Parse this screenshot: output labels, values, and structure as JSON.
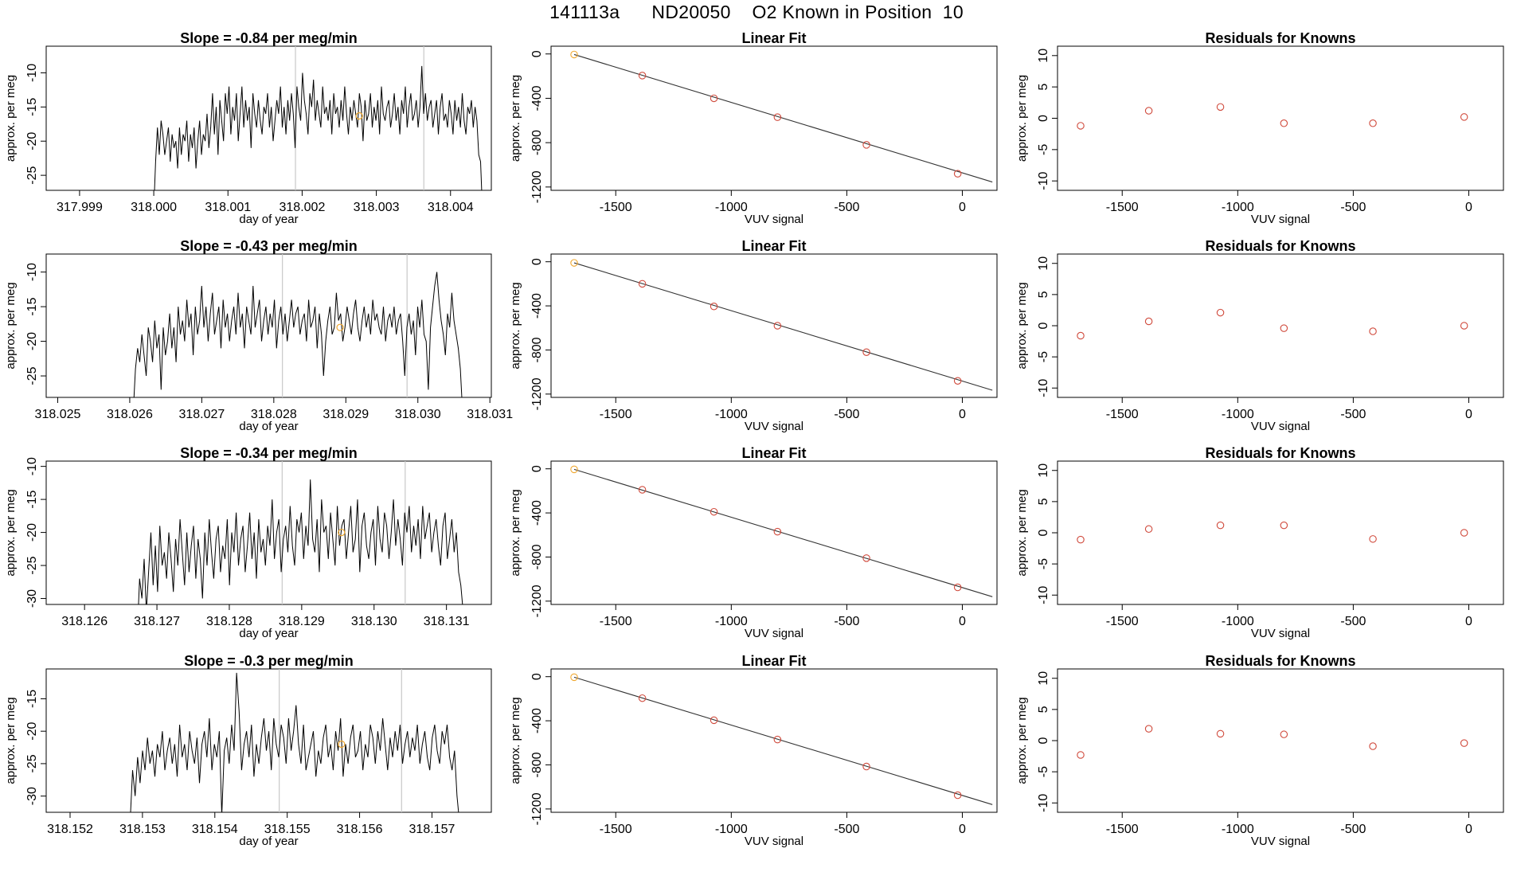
{
  "main_title": "141113a      ND20050    O2 Known in Position  10",
  "colors": {
    "trace": "#000000",
    "known": "#d04a3c",
    "highlight": "#f0a830",
    "vline": "#c8c8c8",
    "fitline": "#333333"
  },
  "chart_data": [
    {
      "type": "line",
      "row": 1,
      "title": "Slope =  -0.84  per meg/min",
      "xlabel": "day of year",
      "ylabel": "approx. per meg",
      "xlim": [
        317.99855,
        318.00455
      ],
      "ylim": [
        -27.2,
        -6.1
      ],
      "xticks": [
        "317.999",
        "318.000",
        "318.001",
        "318.002",
        "318.003",
        "318.004"
      ],
      "yticks": [
        "-10",
        "-15",
        "-20",
        "-25"
      ],
      "x_start": 318.0,
      "x_end": 318.00443,
      "vlines": [
        318.00191,
        318.00364
      ],
      "highlight_point": [
        318.00277,
        -16.3
      ],
      "y": [
        -30,
        -23,
        -18,
        -22,
        -17,
        -19,
        -22,
        -20,
        -18,
        -23,
        -19,
        -21,
        -20,
        -24,
        -18,
        -22,
        -19,
        -20,
        -17,
        -23,
        -19,
        -21,
        -18,
        -24,
        -20,
        -17,
        -22,
        -19,
        -20,
        -16,
        -21,
        -18,
        -13,
        -19,
        -15,
        -22,
        -14,
        -17,
        -20,
        -13,
        -16,
        -12,
        -19,
        -15,
        -17,
        -13,
        -20,
        -16,
        -12,
        -18,
        -14,
        -17,
        -15,
        -21,
        -13,
        -16,
        -18,
        -14,
        -17,
        -19,
        -15,
        -16,
        -13,
        -18,
        -15,
        -20,
        -17,
        -14,
        -16,
        -12,
        -18,
        -15,
        -19,
        -14,
        -17,
        -13,
        -16,
        -21,
        -12,
        -15,
        -17,
        -10,
        -14,
        -16,
        -19,
        -13,
        -15,
        -11,
        -17,
        -14,
        -16,
        -18,
        -12,
        -16,
        -15,
        -17,
        -14,
        -19,
        -13,
        -16,
        -15,
        -18,
        -14,
        -17,
        -12,
        -16,
        -19,
        -15,
        -17,
        -14,
        -16,
        -18,
        -13,
        -15,
        -20,
        -14,
        -17,
        -16,
        -13,
        -18,
        -15,
        -17,
        -14,
        -19,
        -12,
        -16,
        -17,
        -15,
        -14,
        -18,
        -16,
        -13,
        -17,
        -15,
        -19,
        -14,
        -16,
        -12,
        -18,
        -15,
        -13,
        -17,
        -16,
        -14,
        -18,
        -15,
        -9,
        -16,
        -13,
        -17,
        -15,
        -14,
        -18,
        -16,
        -14,
        -19,
        -15,
        -13,
        -17,
        -16,
        -18,
        -14,
        -16,
        -19,
        -14,
        -17,
        -15,
        -18,
        -13,
        -17,
        -19,
        -15,
        -16,
        -14,
        -18,
        -15,
        -17,
        -22,
        -23,
        -30
      ]
    },
    {
      "type": "scatter",
      "row": 1,
      "title": "Linear Fit",
      "xlabel": "VUV signal",
      "ylabel": "approx. per meg",
      "xlim": [
        -1780,
        150
      ],
      "ylim": [
        -1230,
        70
      ],
      "xticks": [
        -1500,
        -1000,
        -500,
        0
      ],
      "yticks": [
        0,
        -400,
        -800,
        -1200
      ],
      "x": [
        -1680,
        -1385,
        -1075,
        -800,
        -415,
        -20
      ],
      "y": [
        -5,
        -195,
        -400,
        -570,
        -820,
        -1080
      ],
      "highlight_index": 0,
      "fit": [
        [
          -1680,
          -5
        ],
        [
          130,
          -1155
        ]
      ]
    },
    {
      "type": "scatter",
      "row": 1,
      "title": "Residuals for Knowns",
      "xlabel": "VUV signal",
      "ylabel": "approx. per meg",
      "xlim": [
        -1780,
        150
      ],
      "ylim": [
        -11.5,
        11.5
      ],
      "xticks": [
        -1500,
        -1000,
        -500,
        0
      ],
      "yticks": [
        10,
        5,
        0,
        -5,
        -10
      ],
      "x": [
        -1680,
        -1385,
        -1075,
        -800,
        -415,
        -20
      ],
      "y": [
        -1.2,
        1.2,
        1.8,
        -0.8,
        -0.8,
        0.2
      ]
    },
    {
      "type": "line",
      "row": 2,
      "title": "Slope =  -0.43  per meg/min",
      "xlabel": "day of year",
      "ylabel": "approx. per meg",
      "xlim": [
        318.02484,
        318.03102
      ],
      "ylim": [
        -28.1,
        -7.4
      ],
      "xticks": [
        "318.025",
        "318.026",
        "318.027",
        "318.028",
        "318.029",
        "318.030",
        "318.031"
      ],
      "yticks": [
        "-10",
        "-15",
        "-20",
        "-25"
      ],
      "x_start": 318.02605,
      "x_end": 318.03062,
      "vlines": [
        318.02812,
        318.02985
      ],
      "highlight_point": [
        318.02892,
        -18.0
      ],
      "y": [
        -30,
        -24,
        -21,
        -23,
        -19,
        -22,
        -25,
        -18,
        -20,
        -23,
        -17,
        -21,
        -19,
        -27,
        -18,
        -22,
        -20,
        -16,
        -21,
        -18,
        -23,
        -15,
        -19,
        -17,
        -20,
        -14,
        -18,
        -16,
        -22,
        -15,
        -19,
        -17,
        -12,
        -18,
        -15,
        -20,
        -16,
        -13,
        -19,
        -17,
        -15,
        -21,
        -14,
        -18,
        -16,
        -20,
        -17,
        -15,
        -19,
        -13,
        -18,
        -16,
        -21,
        -15,
        -17,
        -19,
        -12,
        -18,
        -16,
        -14,
        -20,
        -17,
        -15,
        -19,
        -16,
        -18,
        -14,
        -21,
        -17,
        -15,
        -19,
        -16,
        -20,
        -17,
        -14,
        -18,
        -16,
        -15,
        -19,
        -17,
        -16,
        -20,
        -14,
        -18,
        -17,
        -15,
        -21,
        -16,
        -19,
        -25,
        -20,
        -17,
        -15,
        -19,
        -18,
        -13,
        -17,
        -16,
        -20,
        -18,
        -15,
        -17,
        -19,
        -16,
        -14,
        -18,
        -20,
        -17,
        -15,
        -18,
        -16,
        -19,
        -14,
        -17,
        -16,
        -18,
        -19,
        -15,
        -20,
        -17,
        -16,
        -18,
        -15,
        -19,
        -17,
        -16,
        -20,
        -25,
        -18,
        -16,
        -19,
        -17,
        -22,
        -15,
        -18,
        -14,
        -19,
        -20,
        -27,
        -18,
        -15,
        -12,
        -10,
        -14,
        -17,
        -19,
        -22,
        -16,
        -18,
        -13,
        -17,
        -19,
        -21,
        -24,
        -30
      ]
    },
    {
      "type": "scatter",
      "row": 2,
      "title": "Linear Fit",
      "xlabel": "VUV signal",
      "ylabel": "approx. per meg",
      "xlim": [
        -1780,
        150
      ],
      "ylim": [
        -1230,
        70
      ],
      "xticks": [
        -1500,
        -1000,
        -500,
        0
      ],
      "yticks": [
        0,
        -400,
        -800,
        -1200
      ],
      "x": [
        -1680,
        -1385,
        -1075,
        -800,
        -415,
        -20
      ],
      "y": [
        -10,
        -200,
        -405,
        -580,
        -820,
        -1080
      ],
      "highlight_index": 0,
      "fit": [
        [
          -1680,
          -10
        ],
        [
          130,
          -1165
        ]
      ]
    },
    {
      "type": "scatter",
      "row": 2,
      "title": "Residuals for Knowns",
      "xlabel": "VUV signal",
      "ylabel": "approx. per meg",
      "xlim": [
        -1780,
        150
      ],
      "ylim": [
        -11.5,
        11.5
      ],
      "xticks": [
        -1500,
        -1000,
        -500,
        0
      ],
      "yticks": [
        10,
        5,
        0,
        -5,
        -10
      ],
      "x": [
        -1680,
        -1385,
        -1075,
        -800,
        -415,
        -20
      ],
      "y": [
        -1.6,
        0.7,
        2.1,
        -0.4,
        -0.9,
        0.0
      ]
    },
    {
      "type": "line",
      "row": 3,
      "title": "Slope =  -0.34  per meg/min",
      "xlabel": "day of year",
      "ylabel": "approx. per meg",
      "xlim": [
        318.12547,
        318.13162
      ],
      "ylim": [
        -30.9,
        -9.2
      ],
      "xticks": [
        "318.126",
        "318.127",
        "318.128",
        "318.129",
        "318.130",
        "318.131"
      ],
      "yticks": [
        "-10",
        "-15",
        "-20",
        "-25",
        "-30"
      ],
      "x_start": 318.12673,
      "x_end": 318.13123,
      "vlines": [
        318.12873,
        318.13043
      ],
      "highlight_point": [
        318.12955,
        -20.0
      ],
      "y": [
        -35,
        -27,
        -30,
        -24,
        -32,
        -26,
        -20,
        -28,
        -22,
        -29,
        -19,
        -25,
        -23,
        -27,
        -20,
        -24,
        -29,
        -21,
        -25,
        -18,
        -23,
        -28,
        -20,
        -26,
        -22,
        -19,
        -27,
        -21,
        -24,
        -30,
        -20,
        -25,
        -18,
        -23,
        -27,
        -21,
        -19,
        -26,
        -22,
        -24,
        -18,
        -28,
        -20,
        -23,
        -17,
        -25,
        -21,
        -19,
        -26,
        -22,
        -17,
        -24,
        -20,
        -27,
        -18,
        -23,
        -21,
        -25,
        -19,
        -22,
        -15,
        -24,
        -20,
        -18,
        -26,
        -21,
        -19,
        -23,
        -16,
        -22,
        -25,
        -18,
        -20,
        -17,
        -24,
        -19,
        -22,
        -12,
        -21,
        -23,
        -18,
        -26,
        -15,
        -20,
        -19,
        -24,
        -17,
        -21,
        -25,
        -16,
        -22,
        -19,
        -18,
        -24,
        -20,
        -16,
        -23,
        -21,
        -15,
        -26,
        -19,
        -17,
        -22,
        -24,
        -20,
        -18,
        -25,
        -16,
        -21,
        -23,
        -17,
        -19,
        -24,
        -20,
        -15,
        -22,
        -18,
        -21,
        -25,
        -17,
        -20,
        -16,
        -23,
        -19,
        -22,
        -18,
        -24,
        -16,
        -21,
        -19,
        -17,
        -23,
        -20,
        -18,
        -22,
        -25,
        -19,
        -17,
        -24,
        -21,
        -18,
        -23,
        -20,
        -26,
        -28,
        -32
      ]
    },
    {
      "type": "scatter",
      "row": 3,
      "title": "Linear Fit",
      "xlabel": "VUV signal",
      "ylabel": "approx. per meg",
      "xlim": [
        -1780,
        150
      ],
      "ylim": [
        -1230,
        70
      ],
      "xticks": [
        -1500,
        -1000,
        -500,
        0
      ],
      "yticks": [
        0,
        -400,
        -800,
        -1200
      ],
      "x": [
        -1680,
        -1385,
        -1075,
        -800,
        -415,
        -20
      ],
      "y": [
        -5,
        -190,
        -390,
        -570,
        -810,
        -1075
      ],
      "highlight_index": 0,
      "fit": [
        [
          -1680,
          -5
        ],
        [
          130,
          -1160
        ]
      ]
    },
    {
      "type": "scatter",
      "row": 3,
      "title": "Residuals for Knowns",
      "xlabel": "VUV signal",
      "ylabel": "approx. per meg",
      "xlim": [
        -1780,
        150
      ],
      "ylim": [
        -11.5,
        11.5
      ],
      "xticks": [
        -1500,
        -1000,
        -500,
        0
      ],
      "yticks": [
        10,
        5,
        0,
        -5,
        -10
      ],
      "x": [
        -1680,
        -1385,
        -1075,
        -800,
        -415,
        -20
      ],
      "y": [
        -1.1,
        0.6,
        1.2,
        1.2,
        -1.0,
        0.0
      ]
    },
    {
      "type": "line",
      "row": 4,
      "title": "Slope =  -0.3  per meg/min",
      "xlabel": "day of year",
      "ylabel": "approx. per meg",
      "xlim": [
        318.15167,
        318.15782
      ],
      "ylim": [
        -32.5,
        -10.4
      ],
      "xticks": [
        "318.152",
        "318.153",
        "318.154",
        "318.155",
        "318.156",
        "318.157"
      ],
      "yticks": [
        "-15",
        "-20",
        "-25",
        "-30"
      ],
      "x_start": 318.15283,
      "x_end": 318.15738,
      "vlines": [
        318.15489,
        318.15658
      ],
      "highlight_point": [
        318.15575,
        -22.0
      ],
      "y": [
        -34,
        -26,
        -30,
        -24,
        -28,
        -23,
        -26,
        -21,
        -25,
        -23,
        -27,
        -22,
        -24,
        -20,
        -26,
        -23,
        -21,
        -25,
        -22,
        -27,
        -19,
        -24,
        -22,
        -26,
        -20,
        -23,
        -25,
        -21,
        -28,
        -22,
        -20,
        -24,
        -18,
        -26,
        -22,
        -24,
        -20,
        -33,
        -23,
        -21,
        -25,
        -19,
        -23,
        -11,
        -17,
        -26,
        -22,
        -20,
        -24,
        -19,
        -27,
        -22,
        -25,
        -21,
        -18,
        -23,
        -20,
        -26,
        -18,
        -22,
        -24,
        -19,
        -21,
        -25,
        -18,
        -23,
        -20,
        -16,
        -22,
        -25,
        -19,
        -26,
        -24,
        -22,
        -20,
        -27,
        -23,
        -25,
        -21,
        -19,
        -24,
        -22,
        -26,
        -20,
        -23,
        -18,
        -27,
        -22,
        -25,
        -21,
        -19,
        -24,
        -23,
        -20,
        -26,
        -22,
        -24,
        -19,
        -21,
        -25,
        -20,
        -23,
        -18,
        -22,
        -26,
        -21,
        -24,
        -20,
        -23,
        -19,
        -25,
        -22,
        -20,
        -24,
        -21,
        -23,
        -19,
        -25,
        -22,
        -20,
        -24,
        -26,
        -21,
        -19,
        -23,
        -25,
        -20,
        -22,
        -19,
        -24,
        -26,
        -23,
        -30,
        -34
      ]
    },
    {
      "type": "scatter",
      "row": 4,
      "title": "Linear Fit",
      "xlabel": "VUV signal",
      "ylabel": "approx. per meg",
      "xlim": [
        -1780,
        150
      ],
      "ylim": [
        -1230,
        70
      ],
      "xticks": [
        -1500,
        -1000,
        -500,
        0
      ],
      "yticks": [
        0,
        -400,
        -800,
        -1200
      ],
      "x": [
        -1680,
        -1385,
        -1075,
        -800,
        -415,
        -20
      ],
      "y": [
        -5,
        -195,
        -395,
        -570,
        -815,
        -1075
      ],
      "highlight_index": 0,
      "fit": [
        [
          -1680,
          -5
        ],
        [
          130,
          -1160
        ]
      ]
    },
    {
      "type": "scatter",
      "row": 4,
      "title": "Residuals for Knowns",
      "xlabel": "VUV signal",
      "ylabel": "approx. per meg",
      "xlim": [
        -1780,
        150
      ],
      "ylim": [
        -11.5,
        11.5
      ],
      "xticks": [
        -1500,
        -1000,
        -500,
        0
      ],
      "yticks": [
        10,
        5,
        0,
        -5,
        -10
      ],
      "x": [
        -1680,
        -1385,
        -1075,
        -800,
        -415,
        -20
      ],
      "y": [
        -2.3,
        1.9,
        1.1,
        1.0,
        -0.9,
        -0.4
      ]
    }
  ]
}
